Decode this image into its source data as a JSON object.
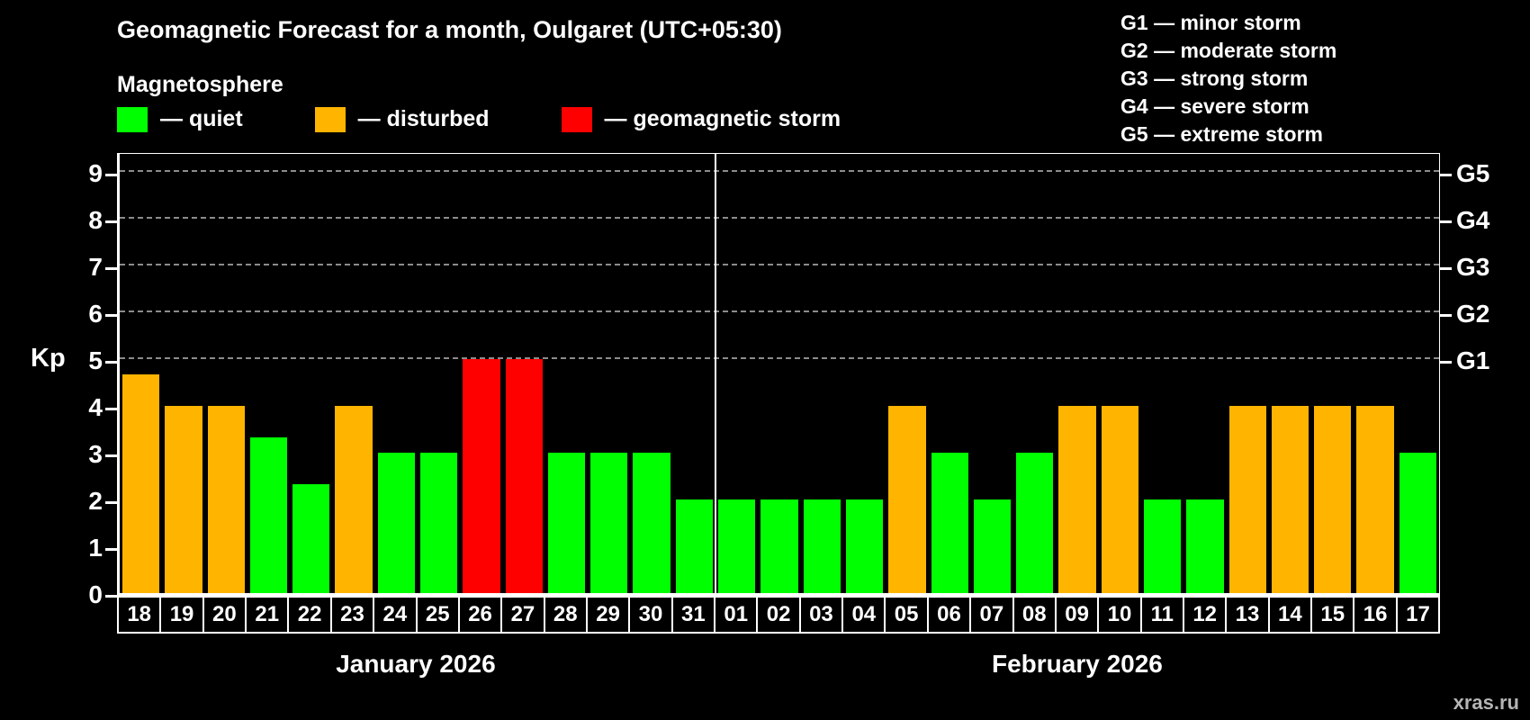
{
  "watermark": "xras.ru",
  "chart_data": {
    "type": "bar",
    "title": "Geomagnetic Forecast for a month, Oulgaret (UTC+05:30)",
    "subtitle": "Magnetosphere",
    "ylabel": "Kp",
    "ylim": [
      0,
      9.4
    ],
    "yticks": [
      0,
      1,
      2,
      3,
      4,
      5,
      6,
      7,
      8,
      9
    ],
    "gridline_levels": [
      5,
      6,
      7,
      8,
      9
    ],
    "legend_position": "top-left",
    "legend": [
      {
        "key": "quiet",
        "label": "— quiet",
        "color": "#00ff00"
      },
      {
        "key": "disturbed",
        "label": "— disturbed",
        "color": "#ffb400"
      },
      {
        "key": "storm",
        "label": "— geomagnetic storm",
        "color": "#ff0000"
      }
    ],
    "storm_scale": [
      "G1 — minor storm",
      "G2 — moderate storm",
      "G3 — strong storm",
      "G4 — severe storm",
      "G5 — extreme storm"
    ],
    "right_axis": [
      {
        "kp": 5,
        "label": "G1"
      },
      {
        "kp": 6,
        "label": "G2"
      },
      {
        "kp": 7,
        "label": "G3"
      },
      {
        "kp": 8,
        "label": "G4"
      },
      {
        "kp": 9,
        "label": "G5"
      }
    ],
    "status_colors": {
      "quiet": "#00ff00",
      "disturbed": "#ffb400",
      "storm": "#ff0000"
    },
    "months": [
      {
        "label": "January 2026",
        "days": 14
      },
      {
        "label": "February 2026",
        "days": 17
      }
    ],
    "bars": [
      {
        "day": "18",
        "kp": 4.67,
        "status": "disturbed"
      },
      {
        "day": "19",
        "kp": 4,
        "status": "disturbed"
      },
      {
        "day": "20",
        "kp": 4,
        "status": "disturbed"
      },
      {
        "day": "21",
        "kp": 3.33,
        "status": "quiet"
      },
      {
        "day": "22",
        "kp": 2.33,
        "status": "quiet"
      },
      {
        "day": "23",
        "kp": 4,
        "status": "disturbed"
      },
      {
        "day": "24",
        "kp": 3,
        "status": "quiet"
      },
      {
        "day": "25",
        "kp": 3,
        "status": "quiet"
      },
      {
        "day": "26",
        "kp": 5,
        "status": "storm"
      },
      {
        "day": "27",
        "kp": 5,
        "status": "storm"
      },
      {
        "day": "28",
        "kp": 3,
        "status": "quiet"
      },
      {
        "day": "29",
        "kp": 3,
        "status": "quiet"
      },
      {
        "day": "30",
        "kp": 3,
        "status": "quiet"
      },
      {
        "day": "31",
        "kp": 2,
        "status": "quiet"
      },
      {
        "day": "01",
        "kp": 2,
        "status": "quiet"
      },
      {
        "day": "02",
        "kp": 2,
        "status": "quiet"
      },
      {
        "day": "03",
        "kp": 2,
        "status": "quiet"
      },
      {
        "day": "04",
        "kp": 2,
        "status": "quiet"
      },
      {
        "day": "05",
        "kp": 4,
        "status": "disturbed"
      },
      {
        "day": "06",
        "kp": 3,
        "status": "quiet"
      },
      {
        "day": "07",
        "kp": 2,
        "status": "quiet"
      },
      {
        "day": "08",
        "kp": 3,
        "status": "quiet"
      },
      {
        "day": "09",
        "kp": 4,
        "status": "disturbed"
      },
      {
        "day": "10",
        "kp": 4,
        "status": "disturbed"
      },
      {
        "day": "11",
        "kp": 2,
        "status": "quiet"
      },
      {
        "day": "12",
        "kp": 2,
        "status": "quiet"
      },
      {
        "day": "13",
        "kp": 4,
        "status": "disturbed"
      },
      {
        "day": "14",
        "kp": 4,
        "status": "disturbed"
      },
      {
        "day": "15",
        "kp": 4,
        "status": "disturbed"
      },
      {
        "day": "16",
        "kp": 4,
        "status": "disturbed"
      },
      {
        "day": "17",
        "kp": 3,
        "status": "quiet"
      }
    ]
  }
}
